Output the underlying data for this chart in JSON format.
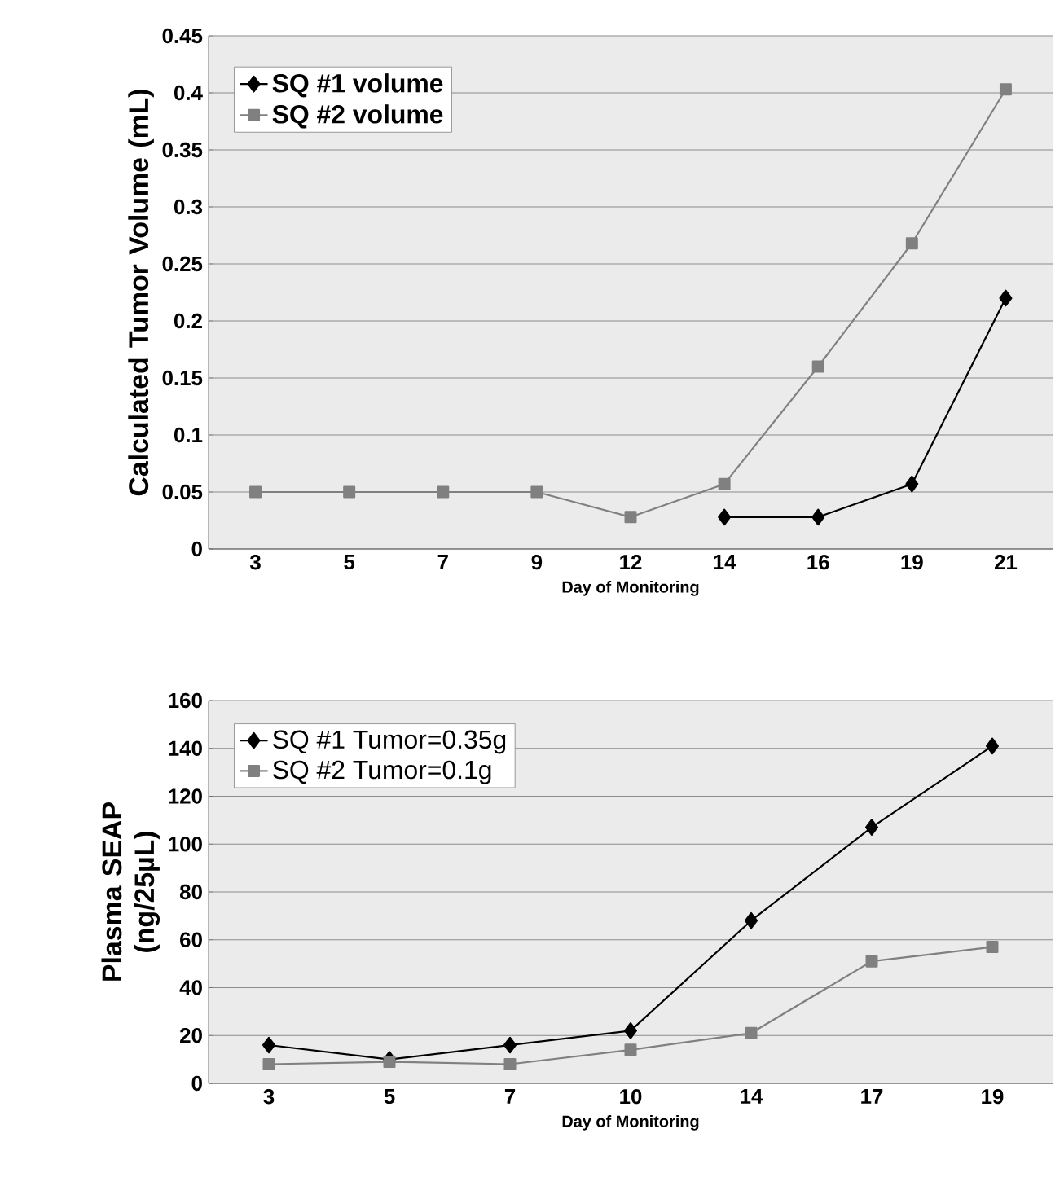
{
  "chart_data": [
    {
      "type": "line",
      "xlabel": "Day of Monitoring",
      "ylabel": "Calculated Tumor Volume (mL)",
      "categories": [
        "3",
        "5",
        "7",
        "9",
        "12",
        "14",
        "16",
        "19",
        "21"
      ],
      "ylim": [
        0,
        0.45
      ],
      "yticks": [
        0,
        0.05,
        0.1,
        0.15,
        0.2,
        0.25,
        0.3,
        0.35,
        0.4,
        0.45
      ],
      "grid": "y",
      "legend": "top left",
      "line_style": "solid",
      "series": [
        {
          "name": "SQ #1 volume",
          "color": "#000000",
          "marker": "diamond",
          "values": [
            null,
            null,
            null,
            null,
            null,
            0.028,
            0.028,
            0.057,
            0.22
          ]
        },
        {
          "name": "SQ #2 volume",
          "color": "#808080",
          "marker": "square",
          "values": [
            0.05,
            0.05,
            0.05,
            0.05,
            0.028,
            0.057,
            0.16,
            0.268,
            0.403
          ]
        }
      ]
    },
    {
      "type": "line",
      "xlabel": "Day of Monitoring",
      "ylabel": "Plasma SEAP (ng/25µL)",
      "categories": [
        "3",
        "5",
        "7",
        "10",
        "14",
        "17",
        "19"
      ],
      "ylim": [
        0,
        160
      ],
      "yticks": [
        0,
        20,
        40,
        60,
        80,
        100,
        120,
        140,
        160
      ],
      "grid": "y",
      "legend": "top left",
      "line_style": "solid",
      "series": [
        {
          "name": "SQ  #1  Tumor=0.35g",
          "color": "#000000",
          "marker": "diamond",
          "values": [
            16,
            10,
            16,
            22,
            68,
            107,
            141
          ]
        },
        {
          "name": "SQ  #2  Tumor=0.1g",
          "color": "#808080",
          "marker": "square",
          "values": [
            8,
            9,
            8,
            14,
            21,
            51,
            57
          ]
        }
      ]
    }
  ]
}
